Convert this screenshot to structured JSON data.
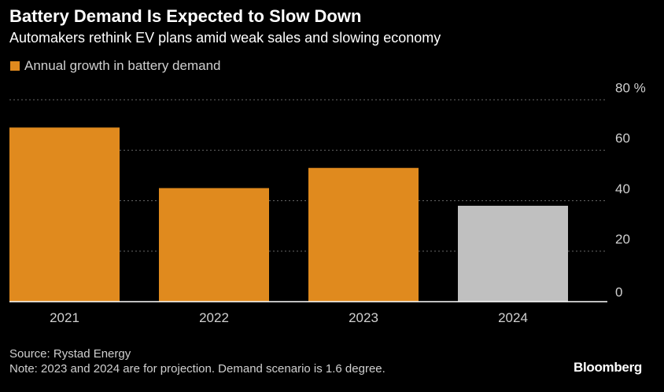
{
  "header": {
    "title": "Battery Demand Is Expected to Slow Down",
    "subtitle": "Automakers rethink EV plans amid weak sales and slowing economy"
  },
  "legend": {
    "label": "Annual growth in battery demand"
  },
  "footer": {
    "source": "Source: Rystad Energy",
    "note": "Note: 2023 and 2024 are for projection. Demand scenario is 1.6 degree.",
    "brand": "Bloomberg"
  },
  "colors": {
    "actual": "#e08a1e",
    "projection": "#c0c0c0",
    "grid": "#666666",
    "axis": "#ffffff",
    "text": "#d0d0d0"
  },
  "chart_data": {
    "type": "bar",
    "categories": [
      "2021",
      "2022",
      "2023",
      "2024"
    ],
    "series": [
      {
        "name": "Annual growth in battery demand",
        "values": [
          69,
          45,
          53,
          38
        ]
      }
    ],
    "bar_colors": [
      "actual",
      "actual",
      "actual",
      "projection"
    ],
    "ylim": [
      0,
      80
    ],
    "yticks": [
      0,
      20,
      40,
      60,
      80
    ],
    "ytick_labels": [
      "0",
      "20",
      "40",
      "60",
      "80 %"
    ],
    "grid": true,
    "title": "Battery Demand Is Expected to Slow Down",
    "subtitle": "Automakers rethink EV plans amid weak sales and slowing economy",
    "legend_position": "top-left"
  }
}
